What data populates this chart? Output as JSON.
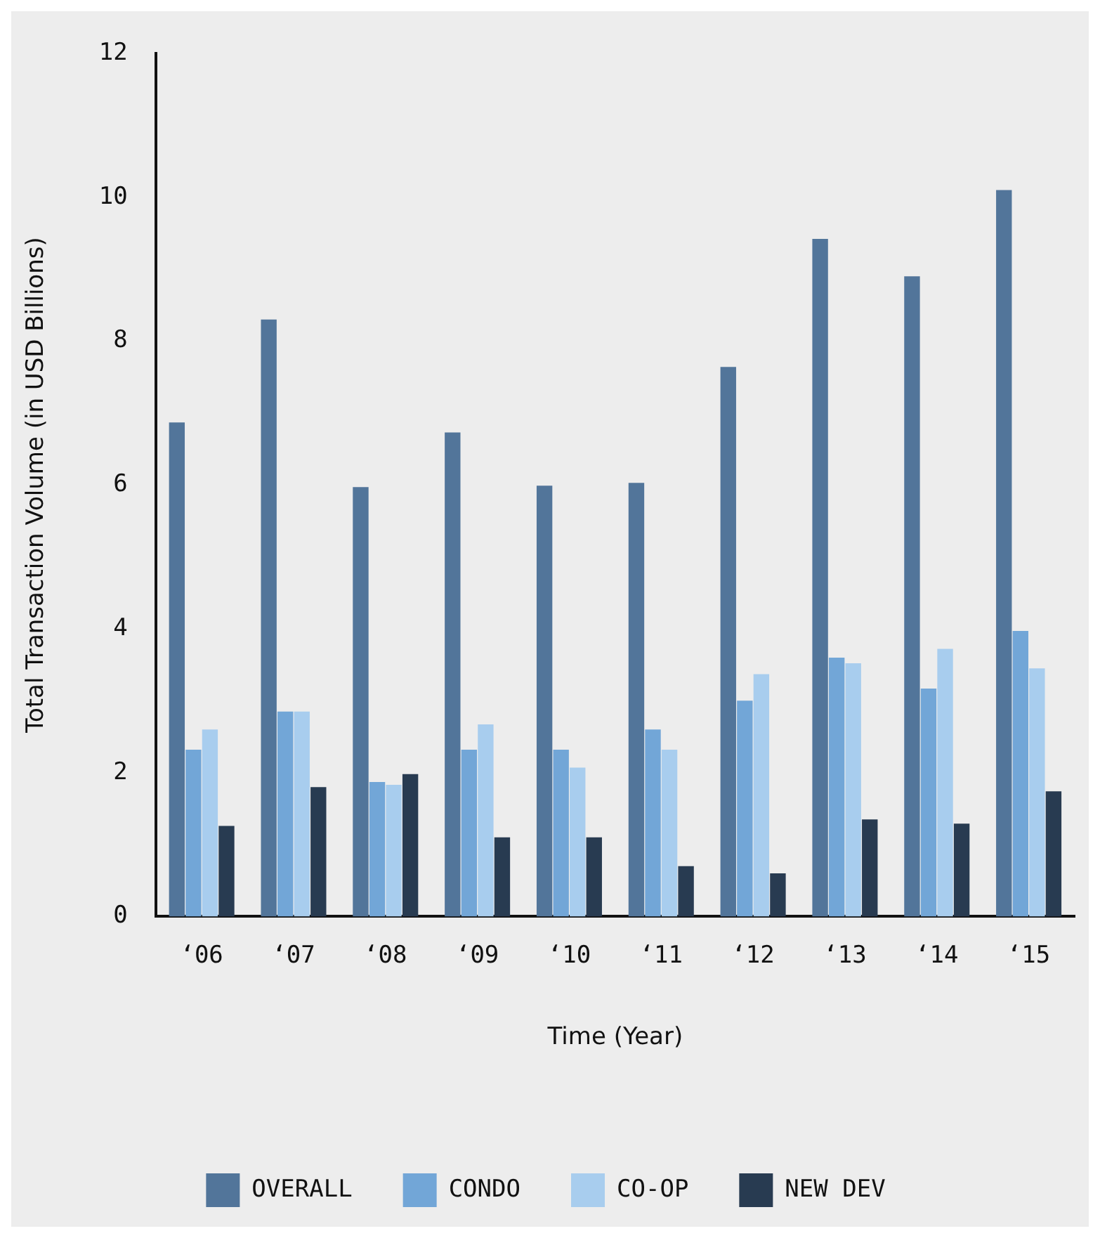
{
  "chart_data": {
    "type": "bar",
    "xlabel": "Time (Year)",
    "ylabel": "Total Transaction Volume (in USD Billions)",
    "categories": [
      "‘06",
      "‘07",
      "‘08",
      "‘09",
      "‘10",
      "‘11",
      "‘12",
      "‘13",
      "‘14",
      "‘15"
    ],
    "series": [
      {
        "name": "OVERALL",
        "color": "#52759a",
        "values": [
          6.87,
          8.3,
          5.97,
          6.73,
          5.99,
          6.03,
          7.64,
          9.42,
          8.9,
          10.1
        ]
      },
      {
        "name": "CONDO",
        "color": "#72a6d7",
        "values": [
          2.32,
          2.85,
          1.87,
          2.32,
          2.32,
          2.6,
          3.0,
          3.6,
          3.17,
          3.97
        ]
      },
      {
        "name": "CO-OP",
        "color": "#a8cdee",
        "values": [
          2.6,
          2.85,
          1.83,
          2.67,
          2.07,
          2.32,
          3.37,
          3.52,
          3.72,
          3.45
        ]
      },
      {
        "name": "NEW DEV",
        "color": "#283b51",
        "values": [
          1.26,
          1.8,
          1.98,
          1.1,
          1.1,
          0.7,
          0.6,
          1.35,
          1.29,
          1.74
        ]
      }
    ],
    "ylim": [
      0,
      12
    ],
    "yticks": [
      0,
      2,
      4,
      6,
      8,
      10,
      12
    ],
    "grid": false,
    "legend": "bottom"
  }
}
